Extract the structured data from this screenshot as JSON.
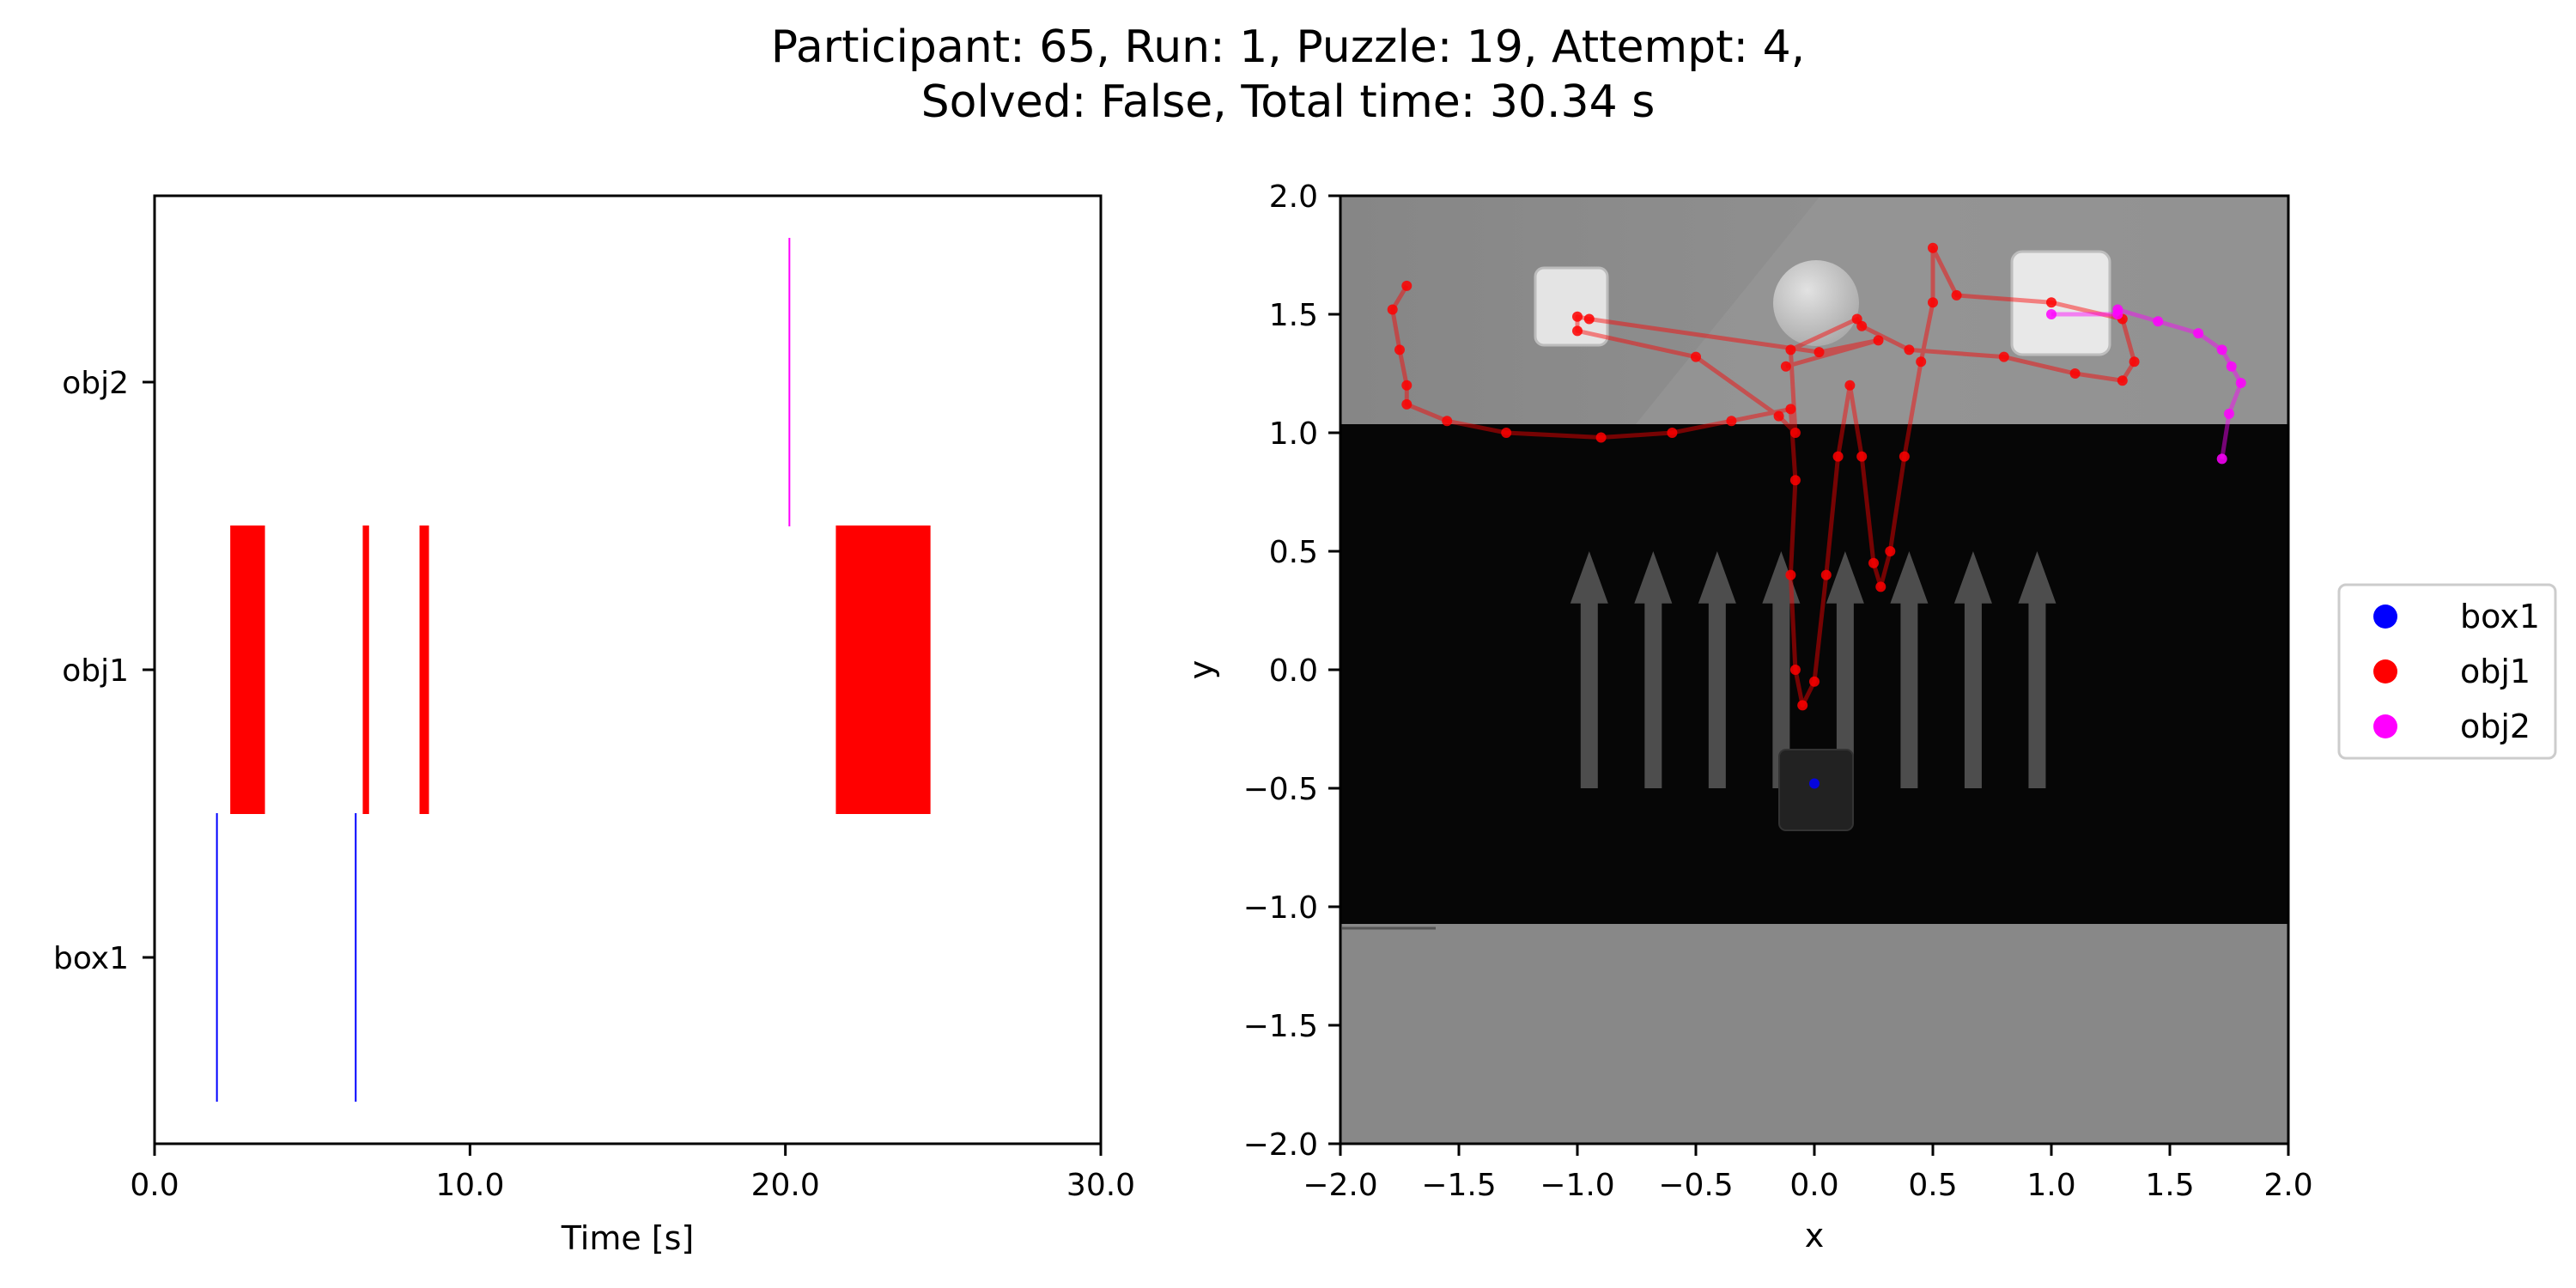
{
  "title": {
    "line1": "Participant: 65, Run: 1, Puzzle: 19, Attempt: 4,",
    "line2": "Solved: False, Total time: 30.34 s"
  },
  "chart_data": [
    {
      "type": "timeline",
      "xlabel": "Time [s]",
      "ylabel": "",
      "xlim": [
        0.0,
        30.0
      ],
      "x_ticks": [
        "0.0",
        "10.0",
        "20.0",
        "30.0"
      ],
      "categories": [
        "box1",
        "obj1",
        "obj2"
      ],
      "colors": {
        "box1": "#0000ff",
        "obj1": "#ff0000",
        "obj2": "#ff00ff"
      },
      "intervals": [
        {
          "object": "box1",
          "start": 1.95,
          "end": 2.0
        },
        {
          "object": "box1",
          "start": 6.35,
          "end": 6.4
        },
        {
          "object": "obj1",
          "start": 2.4,
          "end": 3.5
        },
        {
          "object": "obj1",
          "start": 6.6,
          "end": 6.8
        },
        {
          "object": "obj1",
          "start": 8.4,
          "end": 8.7
        },
        {
          "object": "obj1",
          "start": 21.6,
          "end": 24.6
        },
        {
          "object": "obj2",
          "start": 20.1,
          "end": 20.15
        }
      ],
      "grid": false
    },
    {
      "type": "scatter",
      "xlabel": "x",
      "ylabel": "y",
      "xlim": [
        -2.0,
        2.0
      ],
      "ylim": [
        -2.0,
        2.0
      ],
      "x_ticks": [
        "−2.0",
        "−1.5",
        "−1.0",
        "−0.5",
        "0.0",
        "0.5",
        "1.0",
        "1.5",
        "2.0"
      ],
      "y_ticks": [
        "2.0",
        "1.5",
        "1.0",
        "0.5",
        "0.0",
        "−0.5",
        "−1.0",
        "−1.5",
        "−2.0"
      ],
      "legend": {
        "placement": "outside-right",
        "entries": [
          "box1",
          "obj1",
          "obj2"
        ]
      },
      "grid": false,
      "series": [
        {
          "name": "box1",
          "color": "#0000ff",
          "points": [
            [
              0.0,
              -0.48
            ]
          ]
        },
        {
          "name": "obj1",
          "color": "#ff0000",
          "points": [
            [
              -1.72,
              1.62
            ],
            [
              -1.78,
              1.52
            ],
            [
              -1.75,
              1.35
            ],
            [
              -1.72,
              1.2
            ],
            [
              -1.72,
              1.12
            ],
            [
              -1.55,
              1.05
            ],
            [
              -1.3,
              1.0
            ],
            [
              -0.9,
              0.98
            ],
            [
              -0.6,
              1.0
            ],
            [
              -0.35,
              1.05
            ],
            [
              -0.1,
              1.1
            ],
            [
              -0.08,
              0.8
            ],
            [
              -0.1,
              0.4
            ],
            [
              -0.08,
              0.0
            ],
            [
              -0.05,
              -0.15
            ],
            [
              0.0,
              -0.05
            ],
            [
              0.05,
              0.4
            ],
            [
              0.1,
              0.9
            ],
            [
              0.15,
              1.2
            ],
            [
              0.2,
              0.9
            ],
            [
              0.25,
              0.45
            ],
            [
              0.28,
              0.35
            ],
            [
              0.32,
              0.5
            ],
            [
              0.38,
              0.9
            ],
            [
              0.45,
              1.3
            ],
            [
              0.5,
              1.55
            ],
            [
              0.5,
              1.78
            ],
            [
              0.6,
              1.58
            ],
            [
              1.0,
              1.55
            ],
            [
              1.3,
              1.48
            ],
            [
              1.35,
              1.3
            ],
            [
              1.3,
              1.22
            ],
            [
              1.1,
              1.25
            ],
            [
              0.8,
              1.32
            ],
            [
              0.4,
              1.35
            ],
            [
              0.2,
              1.45
            ],
            [
              0.18,
              1.48
            ],
            [
              -0.1,
              1.35
            ],
            [
              -0.08,
              1.0
            ],
            [
              -0.15,
              1.07
            ],
            [
              -0.5,
              1.32
            ],
            [
              -1.0,
              1.43
            ],
            [
              -1.0,
              1.49
            ],
            [
              -0.95,
              1.48
            ],
            [
              0.02,
              1.34
            ],
            [
              0.27,
              1.39
            ],
            [
              -0.12,
              1.28
            ]
          ]
        },
        {
          "name": "obj2",
          "color": "#ff00ff",
          "points": [
            [
              1.0,
              1.5
            ],
            [
              1.28,
              1.5
            ],
            [
              1.28,
              1.52
            ],
            [
              1.45,
              1.47
            ],
            [
              1.62,
              1.42
            ],
            [
              1.72,
              1.35
            ],
            [
              1.76,
              1.28
            ],
            [
              1.8,
              1.21
            ],
            [
              1.75,
              1.08
            ],
            [
              1.72,
              0.89
            ]
          ]
        }
      ]
    }
  ]
}
